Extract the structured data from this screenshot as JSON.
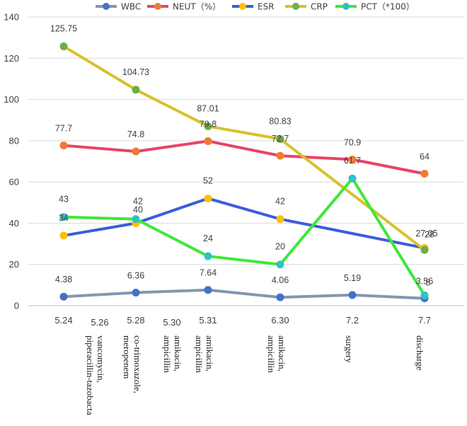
{
  "chart_data": {
    "type": "line",
    "categories": [
      "5.24",
      "5.28",
      "5.31",
      "6.30",
      "7.2",
      "7.7"
    ],
    "intermediate_dates": [
      "5.26",
      "5.30"
    ],
    "ylim": [
      0,
      140
    ],
    "yticks": [
      "0",
      "20",
      "40",
      "60",
      "80",
      "100",
      "120",
      "140"
    ],
    "grid": true,
    "legend_position": "top",
    "series": [
      {
        "name": "WBC",
        "color": "#8497b0",
        "marker_color": "#4472c4",
        "values": [
          4.38,
          6.36,
          7.64,
          4.06,
          5.19,
          3.56
        ],
        "labels": [
          "4.38",
          "6.36",
          "7.64",
          "4.06",
          "5.19",
          "3.56"
        ]
      },
      {
        "name": "NEUT（%）",
        "color": "#e8436a",
        "marker_color": "#ed7d31",
        "values": [
          77.7,
          74.8,
          79.8,
          72.7,
          70.9,
          64
        ],
        "labels": [
          "77.7",
          "74.8",
          "79.8",
          "72.7",
          "70.9",
          "64"
        ]
      },
      {
        "name": "ESR",
        "color": "#3a5ddc",
        "marker_color": "#ffc000",
        "values": [
          34,
          40,
          52,
          42,
          null,
          28
        ],
        "labels": [
          "34",
          "40",
          "52",
          "42",
          "",
          "28"
        ]
      },
      {
        "name": "CRP",
        "color": "#d6c22c",
        "marker_color": "#70ad47",
        "values": [
          125.75,
          104.73,
          87.01,
          80.83,
          null,
          27.05
        ],
        "labels": [
          "125.75",
          "104.73",
          "87.01",
          "80.83",
          "",
          "27.05"
        ]
      },
      {
        "name": "PCT（*100）",
        "color": "#3ee838",
        "marker_color": "#2ec3c3",
        "values": [
          43,
          42,
          24,
          20,
          61.7,
          5
        ],
        "labels": [
          "43",
          "42",
          "24",
          "20",
          "61.7",
          "5"
        ]
      }
    ],
    "annotations": [
      {
        "position": 1,
        "lines": [
          "vancomycin,",
          "piperacillin-tazobacta"
        ]
      },
      {
        "position": 2,
        "lines": [
          "co-trimoxazole,",
          "meropenem"
        ]
      },
      {
        "position": 3,
        "lines": [
          "amikacin,",
          "ampicillin"
        ]
      },
      {
        "position": 4,
        "lines": [
          "amikacin,",
          "ampicillin"
        ]
      },
      {
        "position": 6,
        "lines": [
          "amikacin,",
          "ampicillin"
        ]
      },
      {
        "position": 8,
        "lines": [
          "surgery"
        ]
      },
      {
        "position": 9,
        "lines": [
          "discharge"
        ]
      }
    ]
  }
}
